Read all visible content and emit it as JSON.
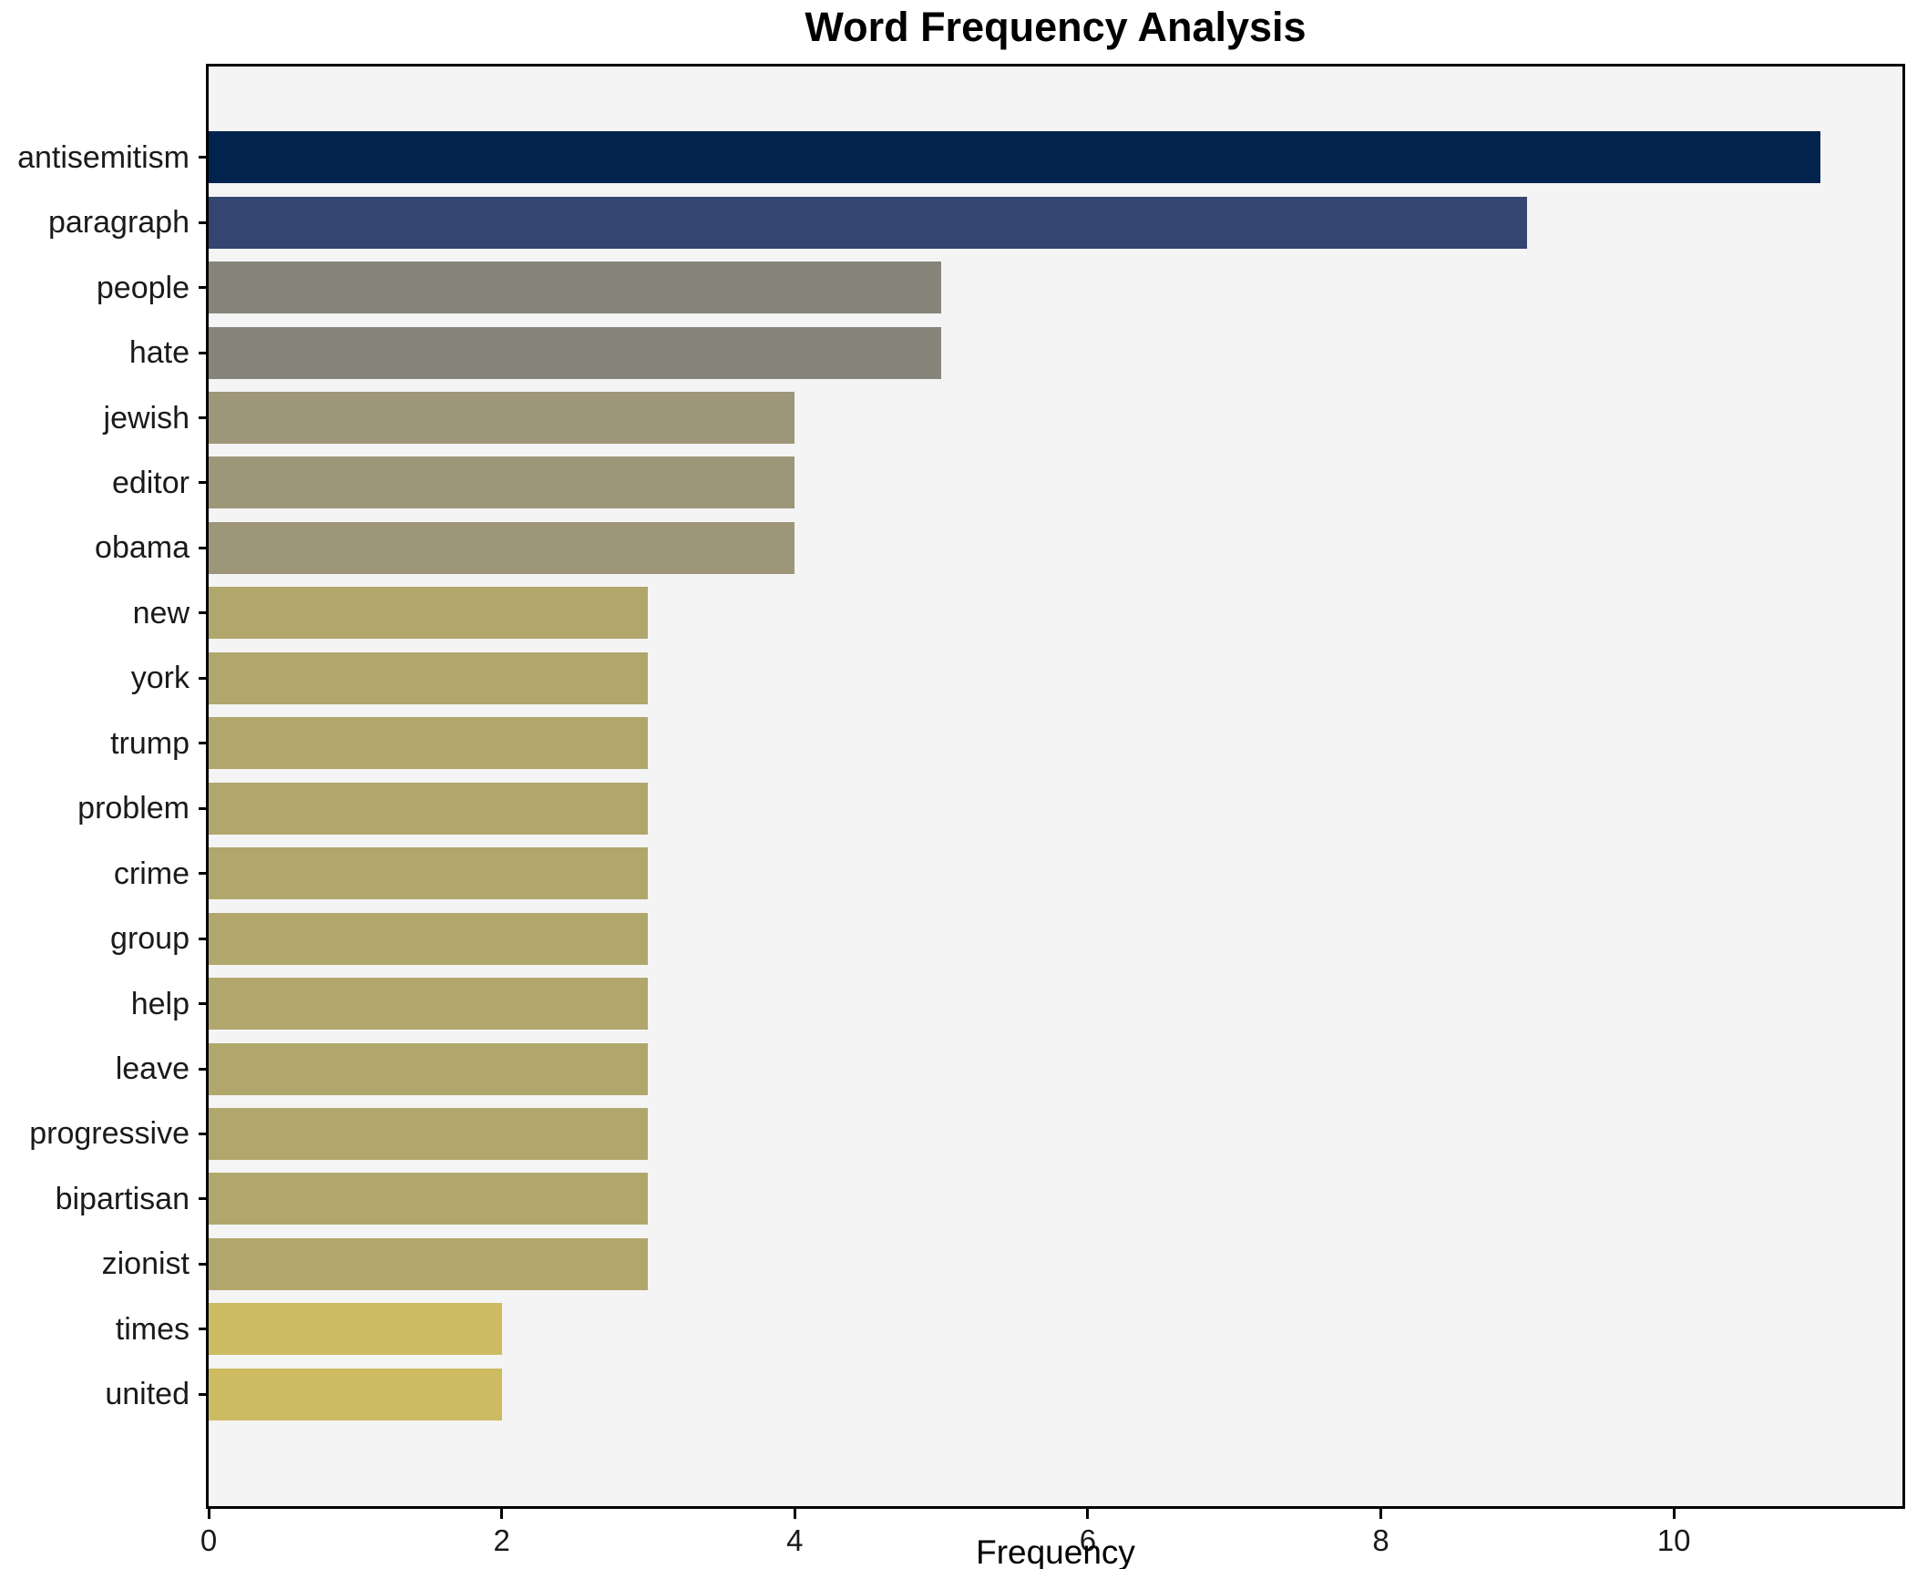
{
  "chart_data": {
    "type": "bar",
    "orientation": "horizontal",
    "title": "Word Frequency Analysis",
    "xlabel": "Frequency",
    "ylabel": "",
    "categories": [
      "antisemitism",
      "paragraph",
      "people",
      "hate",
      "jewish",
      "editor",
      "obama",
      "new",
      "york",
      "trump",
      "problem",
      "crime",
      "group",
      "help",
      "leave",
      "progressive",
      "bipartisan",
      "zionist",
      "times",
      "united"
    ],
    "values": [
      11,
      9,
      5,
      5,
      4,
      4,
      4,
      3,
      3,
      3,
      3,
      3,
      3,
      3,
      3,
      3,
      3,
      3,
      2,
      2
    ],
    "bar_colors": [
      "#01234e",
      "#334570",
      "#87857a",
      "#87857a",
      "#9e9678",
      "#9e9678",
      "#9e9678",
      "#b1a76c",
      "#b1a76c",
      "#b1a76c",
      "#b1a76c",
      "#b1a76c",
      "#b1a76c",
      "#b1a76c",
      "#b1a76c",
      "#b1a76c",
      "#b1a76c",
      "#b1a76c",
      "#cdbb62",
      "#cdbb62"
    ],
    "x_ticks": [
      0,
      2,
      4,
      6,
      8,
      10
    ],
    "xlim": [
      0,
      11.56
    ],
    "grid": false,
    "legend": false,
    "plot_bg": "#f4f4f5",
    "figure_bg": "#ffffff",
    "spine_color": "#000000"
  }
}
